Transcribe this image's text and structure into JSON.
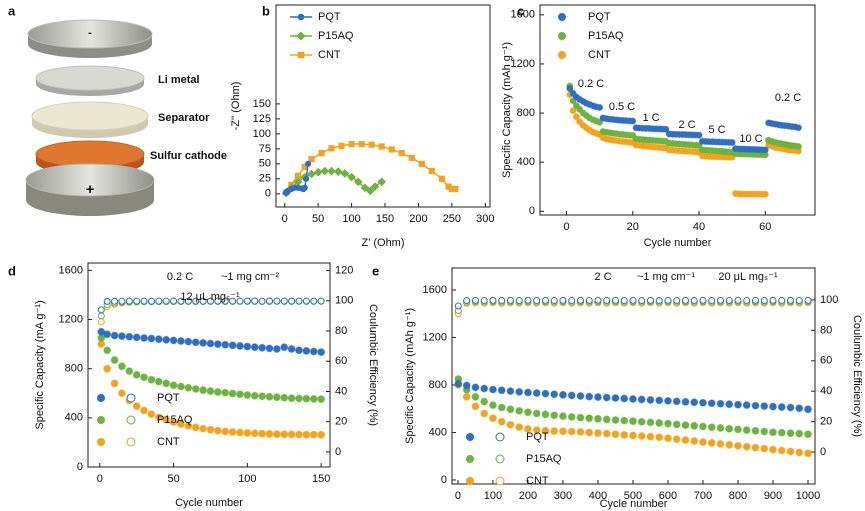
{
  "panel_a": {
    "label": "a",
    "layers": [
      "Li metal",
      "Separator",
      "Sulfur cathode"
    ],
    "signs": [
      "-",
      "+"
    ]
  },
  "chart_data": [
    {
      "label": "b",
      "type": "line",
      "xlabel": "Z' (Ohm)",
      "ylabel": "-Z'' (Ohm)",
      "xlim": [
        -13,
        307
      ],
      "ylim": [
        -22,
        315
      ],
      "xticks": [
        0,
        50,
        100,
        150,
        200,
        250,
        300
      ],
      "yticks": [
        0,
        25,
        50,
        75,
        100,
        125,
        150
      ],
      "legend": "upper left",
      "series": [
        {
          "name": "PQT",
          "color": "#2e6fc4",
          "marker": "circle",
          "x": [
            2,
            5,
            10,
            15,
            20,
            25,
            28,
            30,
            32,
            35
          ],
          "values": [
            2,
            5,
            8,
            10,
            10,
            9,
            8,
            10,
            25,
            50
          ]
        },
        {
          "name": "P15AQ",
          "color": "#6cb33f",
          "marker": "diamond",
          "x": [
            2,
            10,
            20,
            30,
            40,
            50,
            60,
            70,
            80,
            90,
            100,
            110,
            120,
            128,
            135,
            145
          ],
          "values": [
            1,
            10,
            20,
            28,
            33,
            36,
            38,
            38,
            37,
            34,
            28,
            20,
            10,
            5,
            12,
            20
          ]
        },
        {
          "name": "CNT",
          "color": "#f5a31a",
          "marker": "square",
          "x": [
            3,
            10,
            20,
            30,
            40,
            55,
            70,
            85,
            100,
            115,
            130,
            145,
            160,
            175,
            190,
            205,
            220,
            235,
            245,
            250,
            255
          ],
          "values": [
            3,
            15,
            30,
            45,
            58,
            68,
            76,
            80,
            83,
            83,
            82,
            79,
            74,
            68,
            60,
            50,
            38,
            25,
            12,
            8,
            8
          ]
        }
      ]
    },
    {
      "label": "c",
      "type": "scatter",
      "xlabel": "Cycle number",
      "ylabel": "Specific Capacity (mAh g⁻¹)",
      "xlim": [
        -8,
        75
      ],
      "ylim": [
        -30,
        1680
      ],
      "xticks": [
        0,
        20,
        40,
        60
      ],
      "yticks": [
        0,
        400,
        800,
        1200,
        1600
      ],
      "legend": "upper left",
      "annotations": [
        "0.2 C",
        "0.5 C",
        "1 C",
        "2 C",
        "5 C",
        "10 C",
        "0.2 C"
      ],
      "x": [
        1,
        2,
        3,
        4,
        5,
        6,
        7,
        8,
        9,
        10,
        11,
        12,
        13,
        14,
        15,
        16,
        17,
        18,
        19,
        20,
        21,
        22,
        23,
        24,
        25,
        26,
        27,
        28,
        29,
        30,
        31,
        32,
        33,
        34,
        35,
        36,
        37,
        38,
        39,
        40,
        41,
        42,
        43,
        44,
        45,
        46,
        47,
        48,
        49,
        50,
        51,
        52,
        53,
        54,
        55,
        56,
        57,
        58,
        59,
        60,
        61,
        62,
        63,
        64,
        65,
        66,
        67,
        68,
        69,
        70
      ],
      "series": [
        {
          "name": "PQT",
          "color": "#2e6fc4",
          "values": [
            1000,
            960,
            930,
            910,
            895,
            880,
            870,
            860,
            850,
            845,
            760,
            755,
            750,
            748,
            745,
            742,
            740,
            738,
            736,
            735,
            680,
            678,
            676,
            675,
            674,
            672,
            671,
            670,
            669,
            668,
            630,
            628,
            627,
            626,
            625,
            624,
            623,
            622,
            621,
            620,
            570,
            568,
            567,
            566,
            565,
            564,
            563,
            562,
            561,
            560,
            510,
            508,
            507,
            506,
            505,
            504,
            503,
            502,
            501,
            500,
            720,
            715,
            710,
            705,
            700,
            698,
            695,
            690,
            688,
            680
          ]
        },
        {
          "name": "P15AQ",
          "color": "#6cb33f",
          "values": [
            1020,
            900,
            860,
            830,
            800,
            780,
            760,
            745,
            735,
            725,
            650,
            645,
            640,
            636,
            632,
            628,
            625,
            622,
            620,
            618,
            590,
            587,
            584,
            582,
            580,
            578,
            576,
            574,
            572,
            570,
            555,
            552,
            550,
            548,
            546,
            544,
            542,
            540,
            538,
            536,
            500,
            498,
            496,
            494,
            492,
            490,
            488,
            486,
            484,
            482,
            470,
            468,
            467,
            466,
            465,
            464,
            463,
            462,
            461,
            460,
            580,
            570,
            560,
            555,
            550,
            545,
            540,
            535,
            532,
            528
          ]
        },
        {
          "name": "CNT",
          "color": "#f5a31a",
          "values": [
            950,
            820,
            770,
            730,
            700,
            680,
            660,
            645,
            635,
            625,
            600,
            590,
            585,
            580,
            576,
            572,
            568,
            565,
            562,
            560,
            540,
            537,
            534,
            531,
            528,
            525,
            522,
            520,
            518,
            516,
            500,
            498,
            496,
            494,
            492,
            490,
            488,
            486,
            484,
            482,
            450,
            448,
            446,
            445,
            444,
            443,
            442,
            441,
            440,
            440,
            145,
            142,
            141,
            140,
            140,
            140,
            140,
            139,
            139,
            139,
            540,
            530,
            520,
            515,
            510,
            505,
            500,
            498,
            495,
            490
          ]
        }
      ]
    },
    {
      "label": "d",
      "type": "scatter",
      "xlabel": "Cycle number",
      "ylabel": "Specific Capacity (mA g⁻¹)",
      "y2label": "Coulumbic Efficiency (%)",
      "xlim": [
        -8,
        156
      ],
      "ylim": [
        0,
        1660
      ],
      "y2lim": [
        -10,
        125
      ],
      "xticks": [
        0,
        50,
        100,
        150
      ],
      "yticks": [
        0,
        400,
        800,
        1200,
        1600
      ],
      "y2ticks": [
        0,
        20,
        40,
        60,
        80,
        100,
        120
      ],
      "legend": "lower left",
      "annotations": [
        "0.2 C",
        "~1 mg cm⁻²",
        "12 μL mgₛ⁻¹"
      ],
      "x": [
        1,
        5,
        10,
        15,
        20,
        25,
        30,
        35,
        40,
        45,
        50,
        55,
        60,
        65,
        70,
        75,
        80,
        85,
        90,
        95,
        100,
        105,
        110,
        115,
        120,
        125,
        130,
        135,
        140,
        145,
        150
      ],
      "series": [
        {
          "name": "PQT",
          "color": "#2e6fc4",
          "values": [
            1100,
            1080,
            1070,
            1065,
            1060,
            1055,
            1050,
            1045,
            1040,
            1035,
            1030,
            1025,
            1020,
            1015,
            1010,
            1005,
            1000,
            995,
            990,
            985,
            980,
            975,
            970,
            965,
            960,
            975,
            960,
            950,
            945,
            940,
            935
          ],
          "efficiency": [
            94,
            99.6,
            99.7,
            99.7,
            99.8,
            99.8,
            99.8,
            99.7,
            99.8,
            99.8,
            99.8,
            99.8,
            99.8,
            99.8,
            99.7,
            99.8,
            99.8,
            99.8,
            99.8,
            99.8,
            99.8,
            99.8,
            99.7,
            99.8,
            99.8,
            99.8,
            99.8,
            99.8,
            99.8,
            99.8,
            99.8
          ]
        },
        {
          "name": "P15AQ",
          "color": "#6cb33f",
          "values": [
            1050,
            950,
            870,
            820,
            780,
            750,
            730,
            710,
            695,
            680,
            665,
            655,
            645,
            635,
            625,
            618,
            610,
            605,
            598,
            592,
            586,
            580,
            576,
            572,
            568,
            564,
            560,
            558,
            556,
            554,
            552
          ],
          "efficiency": [
            90,
            97.5,
            98.5,
            99,
            99.2,
            99.3,
            99.4,
            99.4,
            99.5,
            99.5,
            99.5,
            99.5,
            99.6,
            99.5,
            99.6,
            99.6,
            99.6,
            99.5,
            99.6,
            99.6,
            99.6,
            99.6,
            99.6,
            99.6,
            99.7,
            99.6,
            99.6,
            99.7,
            99.6,
            99.6,
            99.7
          ]
        },
        {
          "name": "CNT",
          "color": "#f5a31a",
          "values": [
            1000,
            800,
            680,
            600,
            540,
            495,
            460,
            430,
            405,
            385,
            365,
            350,
            335,
            322,
            312,
            303,
            296,
            290,
            285,
            281,
            277,
            274,
            271,
            269,
            267,
            266,
            265,
            264,
            263,
            263,
            262
          ],
          "efficiency": [
            86,
            96,
            97.8,
            98.5,
            99,
            99.2,
            99.3,
            99.4,
            99.4,
            99.5,
            99.5,
            99.5,
            99.5,
            99.6,
            99.6,
            99.6,
            99.6,
            99.6,
            99.6,
            99.7,
            99.7,
            99.7,
            99.7,
            99.7,
            99.7,
            99.7,
            99.7,
            99.7,
            99.7,
            99.7,
            99.7
          ]
        }
      ]
    },
    {
      "label": "e",
      "type": "scatter",
      "xlabel": "Cycle number",
      "ylabel": "Specific Capacity (mAh g⁻¹)",
      "y2label": "Coulumbic Efficiency (%)",
      "xlim": [
        -17,
        1020
      ],
      "ylim": [
        -34,
        1785
      ],
      "y2lim": [
        -21,
        121
      ],
      "xticks": [
        0,
        100,
        200,
        300,
        400,
        500,
        600,
        700,
        800,
        900,
        1000
      ],
      "yticks": [
        0,
        400,
        800,
        1200,
        1600
      ],
      "y2ticks": [
        0,
        20,
        40,
        60,
        80,
        100
      ],
      "legend": "lower left",
      "annotations": [
        "2 C",
        "~1 mg cm⁻¹",
        "20 μL mgₛ⁻¹"
      ],
      "x": [
        1,
        25,
        50,
        75,
        100,
        125,
        150,
        175,
        200,
        225,
        250,
        275,
        300,
        325,
        350,
        375,
        400,
        425,
        450,
        475,
        500,
        525,
        550,
        575,
        600,
        625,
        650,
        675,
        700,
        725,
        750,
        775,
        800,
        825,
        850,
        875,
        900,
        925,
        950,
        975,
        1000
      ],
      "series": [
        {
          "name": "PQT",
          "color": "#2e6fc4",
          "values": [
            810,
            795,
            780,
            770,
            762,
            755,
            748,
            742,
            737,
            732,
            727,
            722,
            717,
            712,
            707,
            702,
            698,
            694,
            690,
            686,
            682,
            678,
            674,
            670,
            666,
            662,
            658,
            654,
            650,
            646,
            642,
            638,
            634,
            630,
            626,
            622,
            618,
            614,
            610,
            604,
            595
          ],
          "efficiency": [
            96,
            99.6,
            99.7,
            99.6,
            99.7,
            99.6,
            99.7,
            99.6,
            99.7,
            99.6,
            99.7,
            99.6,
            99.7,
            99.6,
            99.7,
            99.6,
            99.7,
            99.6,
            99.7,
            99.6,
            99.7,
            99.6,
            99.7,
            99.6,
            99.7,
            99.6,
            99.7,
            99.6,
            99.7,
            99.6,
            99.7,
            99.6,
            99.7,
            99.6,
            99.7,
            99.6,
            99.7,
            99.6,
            99.7,
            99.6,
            99.7
          ]
        },
        {
          "name": "P15AQ",
          "color": "#6cb33f",
          "values": [
            850,
            760,
            700,
            660,
            630,
            610,
            595,
            582,
            570,
            560,
            552,
            545,
            538,
            531,
            525,
            520,
            515,
            510,
            505,
            500,
            495,
            490,
            485,
            480,
            474,
            468,
            462,
            456,
            450,
            444,
            438,
            432,
            426,
            420,
            414,
            408,
            402,
            398,
            394,
            390,
            385
          ],
          "efficiency": [
            93,
            98.6,
            98.8,
            98.7,
            98.8,
            98.7,
            98.8,
            98.7,
            98.8,
            98.7,
            98.8,
            98.7,
            98.8,
            98.7,
            98.8,
            98.7,
            98.8,
            98.7,
            98.8,
            98.7,
            98.8,
            98.7,
            98.8,
            98.7,
            98.8,
            98.7,
            98.8,
            98.7,
            98.8,
            98.7,
            98.8,
            98.7,
            98.8,
            98.7,
            98.8,
            98.7,
            98.8,
            98.7,
            98.8,
            98.7,
            98.8
          ]
        },
        {
          "name": "CNT",
          "color": "#f5a31a",
          "values": [
            800,
            700,
            620,
            560,
            520,
            490,
            465,
            445,
            430,
            420,
            415,
            412,
            410,
            408,
            405,
            400,
            395,
            390,
            385,
            380,
            375,
            370,
            365,
            360,
            352,
            344,
            336,
            328,
            320,
            312,
            304,
            296,
            288,
            280,
            272,
            264,
            256,
            248,
            240,
            232,
            225
          ],
          "efficiency": [
            91,
            97.8,
            98.1,
            97.9,
            98.2,
            97.8,
            98.1,
            97.9,
            98.2,
            97.8,
            98.1,
            97.9,
            98.2,
            97.8,
            98.1,
            97.9,
            98.2,
            97.8,
            98.1,
            97.9,
            98.2,
            97.8,
            98.1,
            97.9,
            98.2,
            97.8,
            98.1,
            97.9,
            98.2,
            97.8,
            98.1,
            97.9,
            98.2,
            97.8,
            98.1,
            97.9,
            98.2,
            97.8,
            98.1,
            97.9,
            98.2
          ]
        }
      ]
    }
  ]
}
